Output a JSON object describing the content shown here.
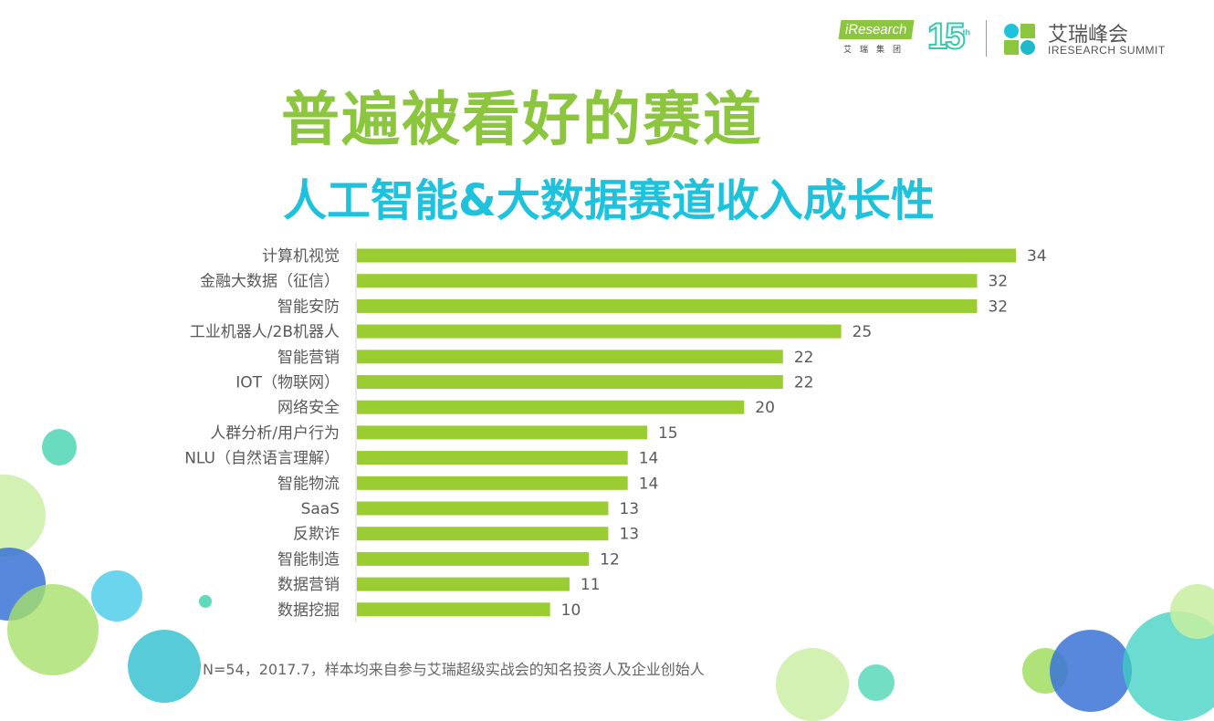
{
  "header": {
    "brand_badge": "iResearch",
    "brand_sub": "艾瑞集团",
    "anniversary": "15",
    "anniversary_sup": "th",
    "summit_cn": "艾瑞峰会",
    "summit_en": "IRESEARCH SUMMIT"
  },
  "title": "普遍被看好的赛道",
  "subtitle": "人工智能&大数据赛道收入成长性",
  "colors": {
    "bar": "#9acd32",
    "title": "#8cc63f",
    "subtitle": "#1fc2dc",
    "label": "#595959"
  },
  "chart_data": {
    "type": "bar",
    "orientation": "horizontal",
    "categories": [
      "计算机视觉",
      "金融大数据（征信）",
      "智能安防",
      "工业机器人/2B机器人",
      "智能营销",
      "IOT（物联网）",
      "网络安全",
      "人群分析/用户行为",
      "NLU（自然语言理解）",
      "智能物流",
      "SaaS",
      "反欺诈",
      "智能制造",
      "数据营销",
      "数据挖掘"
    ],
    "values": [
      34,
      32,
      32,
      25,
      22,
      22,
      20,
      15,
      14,
      14,
      13,
      13,
      12,
      11,
      10
    ],
    "xlim": [
      0,
      34
    ],
    "grid": false,
    "legend": "none"
  },
  "footnote": "N=54，2017.7，样本均来自参与艾瑞超级实战会的知名投资人及企业创始人"
}
